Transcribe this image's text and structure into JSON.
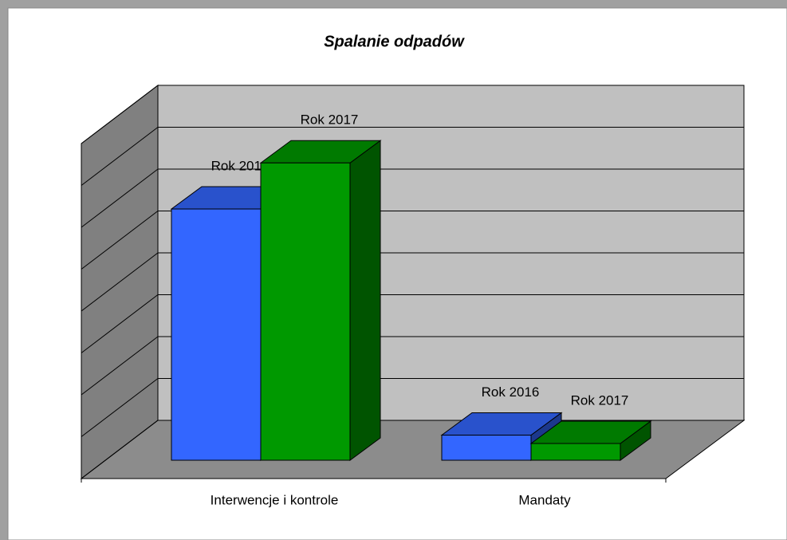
{
  "chart_data": {
    "type": "bar3d",
    "title": "Spalanie  odpadów",
    "categories": [
      "Interwencje i kontrole",
      "Mandaty"
    ],
    "series": [
      {
        "name": "Rok 2016",
        "color": "#3366ff",
        "values": [
          6.0,
          0.6
        ]
      },
      {
        "name": "Rok 2017",
        "color": "#009900",
        "values": [
          7.1,
          0.4
        ]
      }
    ],
    "ylim": [
      0,
      8
    ],
    "yticks": [
      0,
      1,
      2,
      3,
      4,
      5,
      6,
      7,
      8
    ],
    "grid": true
  }
}
